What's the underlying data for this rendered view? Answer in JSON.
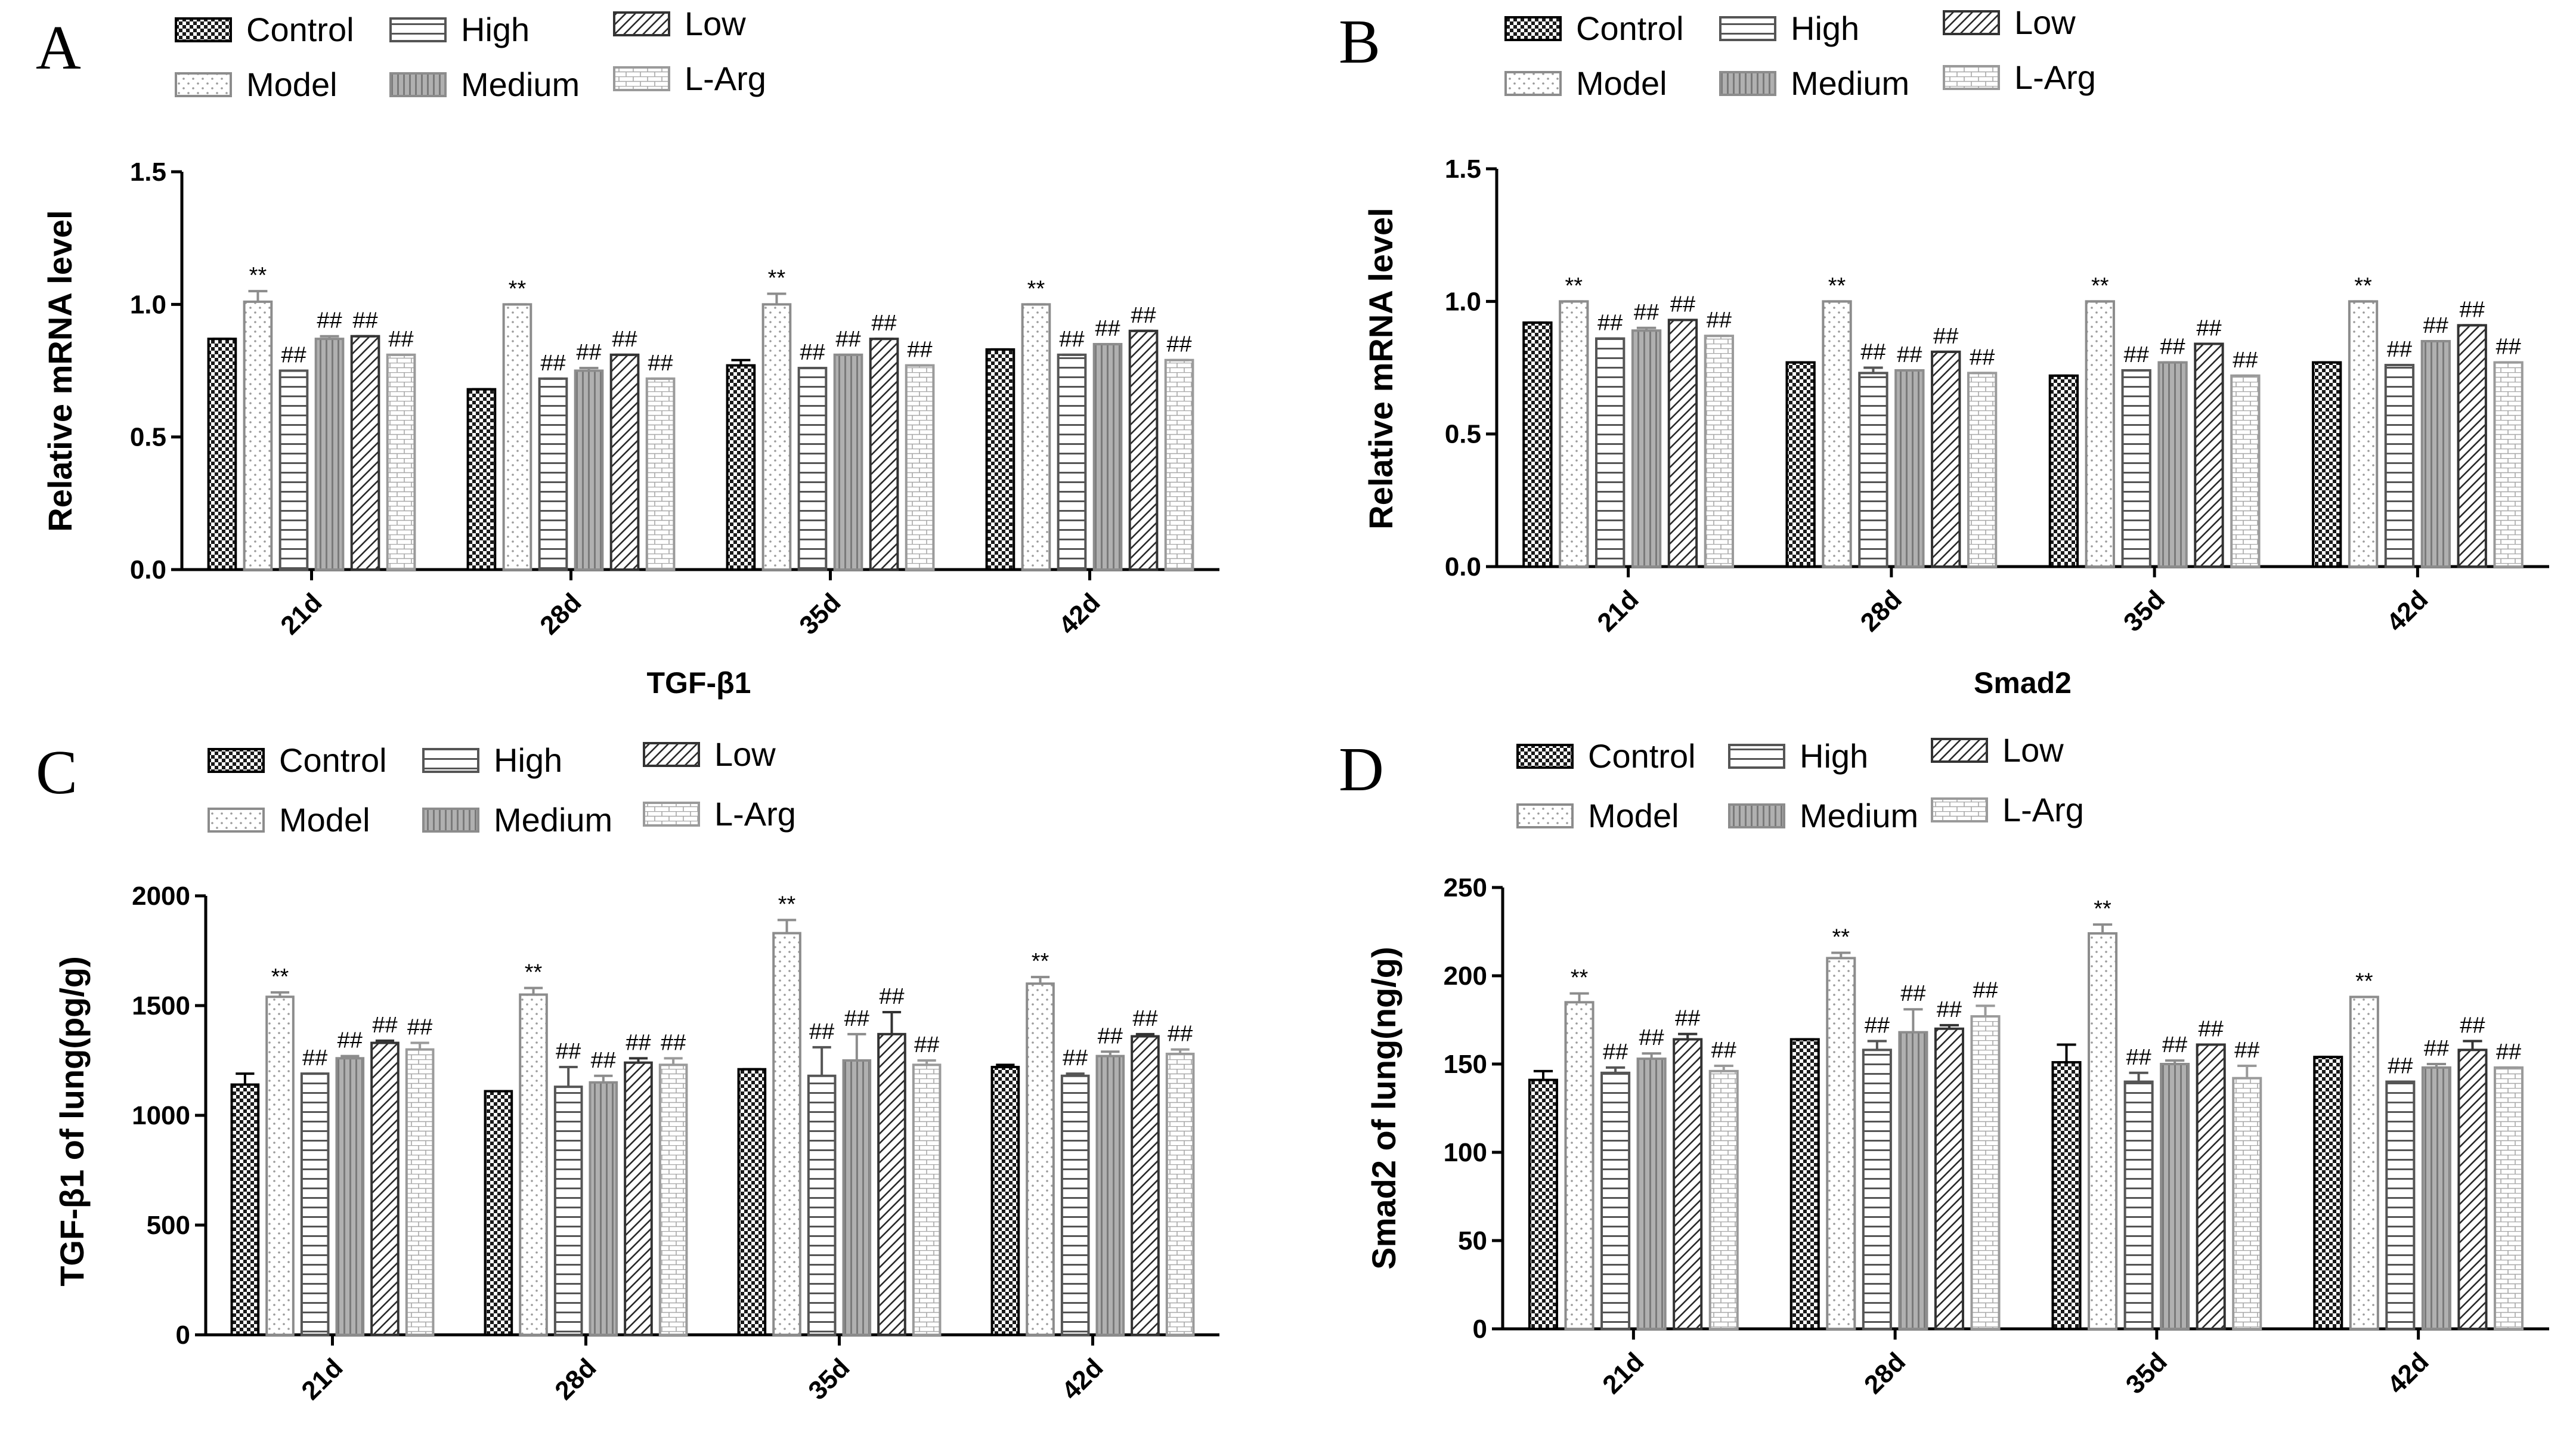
{
  "figure": {
    "group_names": [
      "Control",
      "Model",
      "High",
      "Medium",
      "Low",
      "L-Arg"
    ],
    "colors": {
      "control": "#1a1a1a",
      "outline_black": "#000000",
      "outline_grey": "#8c8c8c",
      "medium_fill": "#a6a6a6"
    },
    "legend_icons": [
      "checker-pattern",
      "dot-pattern",
      "horizontal-line-pattern",
      "vertical-line-pattern",
      "diagonal-line-pattern",
      "brick-pattern"
    ]
  },
  "chart_data": [
    {
      "panel": "A",
      "type": "bar",
      "title": "TGF-β1",
      "xlabel": "",
      "ylabel": "Relative mRNA level",
      "ylim": [
        0,
        1.5
      ],
      "yticks": [
        0.0,
        0.5,
        1.0,
        1.5
      ],
      "ytick_labels": [
        "0.0",
        "0.5",
        "1.0",
        "1.5"
      ],
      "categories": [
        "21d",
        "28d",
        "35d",
        "42d"
      ],
      "series": [
        {
          "name": "Control",
          "values": [
            0.87,
            0.68,
            0.77,
            0.83
          ],
          "errors": [
            0.0,
            0.0,
            0.02,
            0.0
          ]
        },
        {
          "name": "Model",
          "values": [
            1.01,
            1.0,
            1.0,
            1.0
          ],
          "errors": [
            0.04,
            0.0,
            0.04,
            0.0
          ]
        },
        {
          "name": "High",
          "values": [
            0.75,
            0.72,
            0.76,
            0.81
          ],
          "errors": [
            0.0,
            0.0,
            0.0,
            0.0
          ]
        },
        {
          "name": "Medium",
          "values": [
            0.87,
            0.75,
            0.81,
            0.85
          ],
          "errors": [
            0.01,
            0.01,
            0.0,
            0.0
          ]
        },
        {
          "name": "Low",
          "values": [
            0.88,
            0.81,
            0.87,
            0.9
          ],
          "errors": [
            0.0,
            0.0,
            0.0,
            0.0
          ]
        },
        {
          "name": "L-Arg",
          "values": [
            0.81,
            0.72,
            0.77,
            0.79
          ],
          "errors": [
            0.0,
            0.0,
            0.0,
            0.0
          ]
        }
      ],
      "annotations": {
        "Model": "**",
        "High": "##",
        "Medium": "##",
        "Low": "##",
        "L-Arg": "##"
      }
    },
    {
      "panel": "B",
      "type": "bar",
      "title": "Smad2",
      "xlabel": "",
      "ylabel": "Relative mRNA level",
      "ylim": [
        0,
        1.5
      ],
      "yticks": [
        0.0,
        0.5,
        1.0,
        1.5
      ],
      "ytick_labels": [
        "0.0",
        "0.5",
        "1.0",
        "1.5"
      ],
      "categories": [
        "21d",
        "28d",
        "35d",
        "42d"
      ],
      "series": [
        {
          "name": "Control",
          "values": [
            0.92,
            0.77,
            0.72,
            0.77
          ],
          "errors": [
            0.0,
            0.0,
            0.0,
            0.0
          ]
        },
        {
          "name": "Model",
          "values": [
            1.0,
            1.0,
            1.0,
            1.0
          ],
          "errors": [
            0.0,
            0.0,
            0.0,
            0.0
          ]
        },
        {
          "name": "High",
          "values": [
            0.86,
            0.73,
            0.74,
            0.76
          ],
          "errors": [
            0.0,
            0.02,
            0.0,
            0.0
          ]
        },
        {
          "name": "Medium",
          "values": [
            0.89,
            0.74,
            0.77,
            0.85
          ],
          "errors": [
            0.01,
            0.0,
            0.0,
            0.0
          ]
        },
        {
          "name": "Low",
          "values": [
            0.93,
            0.81,
            0.84,
            0.91
          ],
          "errors": [
            0.0,
            0.0,
            0.0,
            0.0
          ]
        },
        {
          "name": "L-Arg",
          "values": [
            0.87,
            0.73,
            0.72,
            0.77
          ],
          "errors": [
            0.0,
            0.0,
            0.0,
            0.0
          ]
        }
      ],
      "annotations": {
        "Model": "**",
        "High": "##",
        "Medium": "##",
        "Low": "##",
        "L-Arg": "##"
      }
    },
    {
      "panel": "C",
      "type": "bar",
      "title": "",
      "xlabel": "",
      "ylabel": "TGF-β1 of lung(pg/g)",
      "ylim": [
        0,
        2000
      ],
      "yticks": [
        0,
        500,
        1000,
        1500,
        2000
      ],
      "ytick_labels": [
        "0",
        "500",
        "1000",
        "1500",
        "2000"
      ],
      "categories": [
        "21d",
        "28d",
        "35d",
        "42d"
      ],
      "series": [
        {
          "name": "Control",
          "values": [
            1140,
            1110,
            1210,
            1220
          ],
          "errors": [
            50,
            0,
            0,
            10
          ]
        },
        {
          "name": "Model",
          "values": [
            1540,
            1550,
            1830,
            1600
          ],
          "errors": [
            20,
            30,
            60,
            30
          ]
        },
        {
          "name": "High",
          "values": [
            1190,
            1130,
            1180,
            1180
          ],
          "errors": [
            0,
            90,
            130,
            10
          ]
        },
        {
          "name": "Medium",
          "values": [
            1260,
            1150,
            1250,
            1270
          ],
          "errors": [
            10,
            30,
            120,
            20
          ]
        },
        {
          "name": "Low",
          "values": [
            1330,
            1240,
            1370,
            1360
          ],
          "errors": [
            10,
            20,
            100,
            10
          ]
        },
        {
          "name": "L-Arg",
          "values": [
            1300,
            1230,
            1230,
            1280
          ],
          "errors": [
            30,
            30,
            20,
            20
          ]
        }
      ],
      "annotations": {
        "Model": "**",
        "High": "##",
        "Medium": "##",
        "Low": "##",
        "L-Arg": "##"
      }
    },
    {
      "panel": "D",
      "type": "bar",
      "title": "",
      "xlabel": "",
      "ylabel": "Smad2 of lung(ng/g)",
      "ylim": [
        0,
        250
      ],
      "yticks": [
        0,
        50,
        100,
        150,
        200,
        250
      ],
      "ytick_labels": [
        "0",
        "50",
        "100",
        "150",
        "200",
        "250"
      ],
      "categories": [
        "21d",
        "28d",
        "35d",
        "42d"
      ],
      "series": [
        {
          "name": "Control",
          "values": [
            141,
            164,
            151,
            154
          ],
          "errors": [
            5,
            0,
            10,
            0
          ]
        },
        {
          "name": "Model",
          "values": [
            185,
            210,
            224,
            188
          ],
          "errors": [
            5,
            3,
            5,
            0
          ]
        },
        {
          "name": "High",
          "values": [
            145,
            158,
            140,
            140
          ],
          "errors": [
            3,
            5,
            5,
            0
          ]
        },
        {
          "name": "Medium",
          "values": [
            153,
            168,
            150,
            148
          ],
          "errors": [
            3,
            13,
            2,
            2
          ]
        },
        {
          "name": "Low",
          "values": [
            164,
            170,
            161,
            158
          ],
          "errors": [
            3,
            2,
            0,
            5
          ]
        },
        {
          "name": "L-Arg",
          "values": [
            146,
            177,
            142,
            148
          ],
          "errors": [
            3,
            6,
            7,
            0
          ]
        }
      ],
      "annotations": {
        "Model": "**",
        "High": "##",
        "Medium": "##",
        "Low": "##",
        "L-Arg": "##"
      }
    }
  ]
}
